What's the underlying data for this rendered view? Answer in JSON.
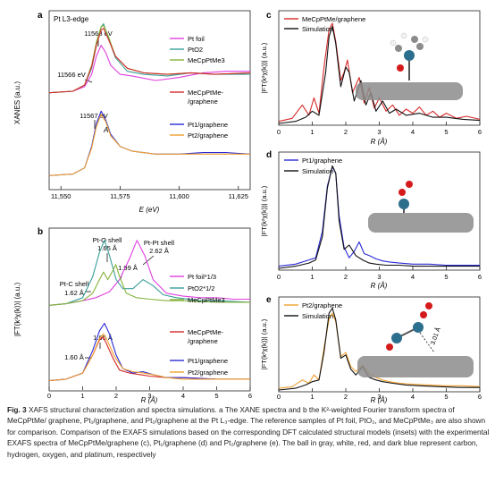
{
  "figure": {
    "caption": {
      "label": "Fig. 3",
      "text": "XAFS structural characterization and spectra simulations. a The XANE spectra and b the K²-weighted Fourier transform spectra of MeCpPtMe/ graphene, Pt₁/graphene, and Pt₂/graphene at the Pt L₃-edge. The reference samples of Pt foil, PtO₂, and MeCpPtMe₃ are also shown for comparison. Comparison of the EXAFS simulations based on the corresponding DFT calculated structural models (insets) with the experimental EXAFS spectra of MeCpPtMe/graphene (c), Pt₁/graphene (d) and Pt₂/graphene (e). The ball in gray, white, red, and dark blue represent carbon, hydrogen, oxygen, and platinum, respectively"
    }
  },
  "colors": {
    "pt_foil": "#e040e0",
    "pto2": "#3a9e9a",
    "mecpptme3": "#86b33a",
    "mecpptme_graphene": "#d62a2a",
    "pt1_graphene": "#2a2ad6",
    "pt2_graphene": "#f0a030",
    "simulation": "#111111",
    "carbon_ball": "#8c8c8c",
    "hydrogen_ball": "#f2f2f2",
    "oxygen_ball": "#d41a1a",
    "platinum_ball": "#2c6e8e"
  },
  "chart_data": [
    {
      "panel": "a",
      "type": "line",
      "title": "Pt L3-edge",
      "xlabel": "E (eV)",
      "ylabel": "XANES (a.u.)",
      "xlim": [
        11545,
        11630
      ],
      "xticks": [
        "11,550",
        "11,575",
        "11,600",
        "11,625"
      ],
      "annotations": [
        "11568 eV",
        "11566 eV",
        "11567 eV",
        "A"
      ],
      "series": [
        {
          "name": "Pt foil",
          "color_key": "pt_foil",
          "x": [
            11545,
            11555,
            11560,
            11563,
            11565,
            11567,
            11569,
            11571,
            11575,
            11580,
            11590,
            11600,
            11610,
            11620,
            11630
          ],
          "values": [
            0.62,
            0.63,
            0.66,
            0.74,
            0.86,
            0.93,
            0.88,
            0.8,
            0.74,
            0.73,
            0.7,
            0.72,
            0.75,
            0.76,
            0.76
          ]
        },
        {
          "name": "PtO2",
          "color_key": "pto2",
          "x": [
            11545,
            11555,
            11560,
            11563,
            11565,
            11567,
            11568,
            11570,
            11573,
            11578,
            11585,
            11595,
            11605,
            11615,
            11630
          ],
          "values": [
            0.62,
            0.63,
            0.67,
            0.78,
            0.93,
            1.05,
            1.07,
            0.98,
            0.85,
            0.76,
            0.74,
            0.73,
            0.75,
            0.74,
            0.74
          ]
        },
        {
          "name": "MeCpPtMe3",
          "color_key": "mecpptme3",
          "x": [
            11545,
            11555,
            11560,
            11563,
            11565,
            11567,
            11568,
            11570,
            11573,
            11578,
            11585,
            11595,
            11605,
            11615,
            11630
          ],
          "values": [
            0.62,
            0.63,
            0.67,
            0.8,
            0.95,
            1.05,
            1.06,
            0.99,
            0.86,
            0.78,
            0.75,
            0.74,
            0.75,
            0.74,
            0.75
          ]
        },
        {
          "name": "MeCpPtMe-/graphene",
          "color_key": "mecpptme_graphene",
          "x": [
            11545,
            11555,
            11560,
            11563,
            11565,
            11567,
            11568,
            11570,
            11573,
            11578,
            11585,
            11595,
            11605,
            11615,
            11630
          ],
          "values": [
            0.62,
            0.63,
            0.67,
            0.79,
            0.93,
            1.03,
            1.04,
            0.97,
            0.86,
            0.78,
            0.75,
            0.74,
            0.75,
            0.74,
            0.75
          ]
        },
        {
          "name": "Pt1/graphene",
          "color_key": "pt1_graphene",
          "x": [
            11545,
            11555,
            11560,
            11563,
            11565,
            11567,
            11569,
            11571,
            11575,
            11580,
            11590,
            11600,
            11610,
            11620,
            11630
          ],
          "values": [
            0.08,
            0.09,
            0.13,
            0.27,
            0.42,
            0.5,
            0.44,
            0.35,
            0.27,
            0.24,
            0.22,
            0.22,
            0.23,
            0.23,
            0.22
          ]
        },
        {
          "name": "Pt2/graphene",
          "color_key": "pt2_graphene",
          "x": [
            11545,
            11555,
            11560,
            11563,
            11565,
            11567,
            11569,
            11571,
            11575,
            11580,
            11590,
            11600,
            11610,
            11620,
            11630
          ],
          "values": [
            0.08,
            0.09,
            0.13,
            0.26,
            0.4,
            0.48,
            0.43,
            0.34,
            0.27,
            0.24,
            0.22,
            0.22,
            0.22,
            0.22,
            0.22
          ]
        }
      ]
    },
    {
      "panel": "b",
      "type": "line",
      "xlabel": "R (Å)",
      "ylabel": "|FT(k³χ(k))| (a.u.)",
      "xlim": [
        0,
        6
      ],
      "xticks": [
        "0",
        "1",
        "2",
        "3",
        "4",
        "5",
        "6"
      ],
      "annotations": [
        "Pt-O shell",
        "1.65 Å",
        "Pt-Pt shell",
        "2.62 Å",
        "1.99 Å",
        "Pt-C shell",
        "1.62 Å",
        "1.65 Å",
        "1.60 Å"
      ],
      "series": [
        {
          "name": "Pt foil*1/3",
          "color_key": "pt_foil",
          "x": [
            0,
            0.5,
            1,
            1.4,
            1.8,
            2.1,
            2.4,
            2.62,
            2.85,
            3.1,
            3.5,
            4,
            4.5,
            5,
            5.5,
            6
          ],
          "values": [
            0.55,
            0.56,
            0.58,
            0.6,
            0.64,
            0.72,
            0.86,
            0.98,
            0.88,
            0.72,
            0.63,
            0.61,
            0.6,
            0.6,
            0.59,
            0.59
          ]
        },
        {
          "name": "PtO2*1/2",
          "color_key": "pto2",
          "x": [
            0,
            0.5,
            1,
            1.3,
            1.5,
            1.65,
            1.8,
            2,
            2.2,
            2.5,
            2.8,
            3.1,
            3.4,
            3.8,
            4.5,
            5,
            6
          ],
          "values": [
            0.55,
            0.56,
            0.6,
            0.74,
            0.9,
            0.98,
            0.88,
            0.72,
            0.66,
            0.66,
            0.72,
            0.68,
            0.62,
            0.6,
            0.58,
            0.58,
            0.57
          ]
        },
        {
          "name": "MeCpPtMe3",
          "color_key": "mecpptme3",
          "x": [
            0,
            0.5,
            1,
            1.3,
            1.5,
            1.62,
            1.75,
            1.9,
            1.99,
            2.1,
            2.3,
            2.6,
            3,
            3.5,
            4,
            5,
            6
          ],
          "values": [
            0.55,
            0.56,
            0.58,
            0.63,
            0.72,
            0.77,
            0.72,
            0.78,
            0.82,
            0.74,
            0.63,
            0.6,
            0.59,
            0.58,
            0.58,
            0.57,
            0.57
          ]
        },
        {
          "name": "MeCpPtMe-/graphene",
          "color_key": "mecpptme_graphene",
          "x": [
            0,
            0.5,
            1,
            1.3,
            1.5,
            1.6,
            1.7,
            1.9,
            2.1,
            2.4,
            2.7,
            3,
            3.5,
            4,
            5,
            6
          ],
          "values": [
            0.05,
            0.06,
            0.1,
            0.22,
            0.32,
            0.34,
            0.3,
            0.2,
            0.12,
            0.1,
            0.09,
            0.08,
            0.07,
            0.07,
            0.06,
            0.06
          ]
        },
        {
          "name": "Pt1/graphene",
          "color_key": "pt1_graphene",
          "x": [
            0,
            0.5,
            1,
            1.3,
            1.5,
            1.65,
            1.8,
            2,
            2.2,
            2.5,
            2.8,
            3.1,
            3.5,
            4,
            5,
            6
          ],
          "values": [
            0.05,
            0.06,
            0.1,
            0.25,
            0.38,
            0.43,
            0.36,
            0.22,
            0.13,
            0.1,
            0.11,
            0.09,
            0.07,
            0.07,
            0.06,
            0.06
          ]
        },
        {
          "name": "Pt2/graphene",
          "color_key": "pt2_graphene",
          "x": [
            0,
            0.5,
            1,
            1.3,
            1.5,
            1.62,
            1.75,
            1.95,
            2.2,
            2.5,
            2.8,
            3.1,
            3.5,
            4,
            5,
            6
          ],
          "values": [
            0.05,
            0.06,
            0.1,
            0.22,
            0.33,
            0.36,
            0.31,
            0.21,
            0.13,
            0.11,
            0.1,
            0.09,
            0.07,
            0.06,
            0.06,
            0.06
          ]
        }
      ]
    },
    {
      "panel": "c",
      "type": "line",
      "xlabel": "R (Å)",
      "ylabel": "|FT(k²χ(k))| (a.u.)",
      "xlim": [
        0,
        6
      ],
      "xticks": [
        "0",
        "1",
        "2",
        "3",
        "4",
        "5",
        "6"
      ],
      "series": [
        {
          "name": "MeCpPtMe/graphene",
          "color_key": "mecpptme_graphene",
          "x": [
            0,
            0.4,
            0.7,
            0.9,
            1.05,
            1.2,
            1.35,
            1.5,
            1.6,
            1.7,
            1.85,
            1.95,
            2.05,
            2.2,
            2.4,
            2.55,
            2.7,
            2.85,
            3.0,
            3.2,
            3.4,
            3.6,
            3.8,
            4.0,
            4.2,
            4.4,
            4.6,
            4.8,
            5.0,
            5.3,
            5.6,
            6
          ],
          "values": [
            0.02,
            0.05,
            0.18,
            0.08,
            0.25,
            0.1,
            0.55,
            0.92,
            0.98,
            0.8,
            0.42,
            0.5,
            0.62,
            0.3,
            0.45,
            0.2,
            0.35,
            0.15,
            0.25,
            0.12,
            0.18,
            0.08,
            0.14,
            0.1,
            0.16,
            0.08,
            0.12,
            0.06,
            0.1,
            0.05,
            0.07,
            0.04
          ]
        },
        {
          "name": "Simulation",
          "color_key": "simulation",
          "x": [
            0,
            0.5,
            0.8,
            1.0,
            1.2,
            1.4,
            1.5,
            1.6,
            1.7,
            1.85,
            2.0,
            2.1,
            2.25,
            2.45,
            2.6,
            2.75,
            2.9,
            3.1,
            3.3,
            3.5,
            3.8,
            4.2,
            4.6,
            5,
            5.5,
            6
          ],
          "values": [
            0.0,
            0.02,
            0.06,
            0.12,
            0.08,
            0.5,
            0.85,
            0.95,
            0.78,
            0.36,
            0.55,
            0.5,
            0.22,
            0.42,
            0.18,
            0.3,
            0.12,
            0.22,
            0.1,
            0.14,
            0.08,
            0.1,
            0.06,
            0.06,
            0.04,
            0.03
          ]
        }
      ]
    },
    {
      "panel": "d",
      "type": "line",
      "xlabel": "R (Å)",
      "ylabel": "|FT(k²χ(k))| (a.u.)",
      "xlim": [
        0,
        6
      ],
      "xticks": [
        "0",
        "1",
        "2",
        "3",
        "4",
        "5",
        "6"
      ],
      "series": [
        {
          "name": "Pt1/graphene",
          "color_key": "pt1_graphene",
          "x": [
            0,
            0.5,
            0.9,
            1.1,
            1.3,
            1.45,
            1.6,
            1.7,
            1.8,
            1.95,
            2.1,
            2.25,
            2.4,
            2.55,
            2.7,
            2.9,
            3.1,
            3.3,
            3.6,
            4,
            4.5,
            5,
            5.5,
            6
          ],
          "values": [
            0.02,
            0.04,
            0.08,
            0.1,
            0.35,
            0.78,
            0.96,
            0.9,
            0.5,
            0.2,
            0.1,
            0.16,
            0.25,
            0.14,
            0.12,
            0.09,
            0.07,
            0.06,
            0.05,
            0.04,
            0.04,
            0.03,
            0.03,
            0.03
          ]
        },
        {
          "name": "Simulation",
          "color_key": "simulation",
          "x": [
            0,
            0.5,
            0.9,
            1.1,
            1.3,
            1.45,
            1.6,
            1.7,
            1.8,
            1.95,
            2.1,
            2.3,
            2.5,
            2.7,
            2.9,
            3.2,
            3.6,
            4,
            4.5,
            5,
            5.5,
            6
          ],
          "values": [
            0.0,
            0.02,
            0.05,
            0.08,
            0.3,
            0.76,
            0.97,
            0.9,
            0.45,
            0.18,
            0.22,
            0.12,
            0.08,
            0.05,
            0.04,
            0.03,
            0.03,
            0.02,
            0.02,
            0.02,
            0.02,
            0.02
          ]
        }
      ]
    },
    {
      "panel": "e",
      "type": "line",
      "xlabel": "R (Å)",
      "ylabel": "|FT(k²χ(k))| (a.u.)",
      "xlim": [
        0,
        6
      ],
      "xticks": [
        "0",
        "1",
        "2",
        "3",
        "4",
        "5",
        "6"
      ],
      "annotations": [
        "3.01 Å"
      ],
      "series": [
        {
          "name": "Pt2/graphene",
          "color_key": "pt2_graphene",
          "x": [
            0,
            0.4,
            0.7,
            0.9,
            1.05,
            1.2,
            1.35,
            1.5,
            1.6,
            1.7,
            1.85,
            2.0,
            2.15,
            2.3,
            2.5,
            2.7,
            2.9,
            3.1,
            3.3,
            3.6,
            4,
            4.5,
            5,
            5.5,
            6
          ],
          "values": [
            0.02,
            0.04,
            0.12,
            0.08,
            0.18,
            0.12,
            0.5,
            0.85,
            0.92,
            0.82,
            0.4,
            0.45,
            0.28,
            0.22,
            0.3,
            0.2,
            0.15,
            0.12,
            0.1,
            0.08,
            0.07,
            0.06,
            0.05,
            0.05,
            0.04
          ]
        },
        {
          "name": "Simulation",
          "color_key": "simulation",
          "x": [
            0,
            0.5,
            0.8,
            1.0,
            1.2,
            1.35,
            1.5,
            1.6,
            1.7,
            1.85,
            2.0,
            2.15,
            2.3,
            2.5,
            2.7,
            2.9,
            3.1,
            3.4,
            3.8,
            4.2,
            4.8,
            5.4,
            6
          ],
          "values": [
            0.0,
            0.02,
            0.06,
            0.1,
            0.12,
            0.45,
            0.92,
            0.98,
            0.84,
            0.38,
            0.42,
            0.25,
            0.18,
            0.28,
            0.15,
            0.12,
            0.1,
            0.08,
            0.06,
            0.05,
            0.04,
            0.03,
            0.03
          ]
        }
      ]
    }
  ],
  "panels": {
    "a": {
      "letter": "a",
      "edge_label": "Pt L3-edge",
      "ylabel": "XANES (a.u.)",
      "xlabel": "E (eV)",
      "ann_11568": "11568 eV",
      "ann_11566": "11566 eV",
      "ann_11567": "11567 eV",
      "ann_A": "A",
      "legend_top": [
        "Pt foil",
        "PtO2",
        "MeCpPtMe3",
        "MeCpPtMe-",
        "/graphene"
      ],
      "legend_bottom": [
        "Pt1/graphene",
        "Pt2/graphene"
      ]
    },
    "b": {
      "letter": "b",
      "ylabel": "|FT(k³χ(k))| (a.u.)",
      "xlabel": "R (Å)",
      "ann_pto_shell": "Pt-O shell",
      "ann_pto_val": "1.65 Å",
      "ann_ptpt_shell": "Pt-Pt shell",
      "ann_ptpt_val": "2.62 Å",
      "ann_199": "1.99 Å",
      "ann_ptc_shell": "Pt-C shell",
      "ann_ptc_val": "1.62 Å",
      "ann_165b": "1.65 Å",
      "ann_160": "1.60 Å",
      "legend_top": [
        "Pt foil*1/3",
        "PtO2*1/2",
        "MeCpPtMe3"
      ],
      "legend_bottom": [
        "MeCpPtMe-",
        "/graphene",
        "Pt1/graphene",
        "Pt2/graphene"
      ]
    },
    "c": {
      "letter": "c",
      "ylabel": "|FT(k²χ(k))| (a.u.)",
      "xlabel": "R (Å)",
      "legend": [
        "MeCpPtMe/graphene",
        "Simulation"
      ]
    },
    "d": {
      "letter": "d",
      "ylabel": "|FT(k²χ(k))| (a.u.)",
      "xlabel": "R (Å)",
      "legend": [
        "Pt1/graphene",
        "Simulation"
      ]
    },
    "e": {
      "letter": "e",
      "ylabel": "|FT(k²χ(k))| (a.u.)",
      "xlabel": "R (Å)",
      "legend": [
        "Pt2/graphene",
        "Simulation"
      ],
      "ann_dist": "3.01 Å"
    }
  }
}
